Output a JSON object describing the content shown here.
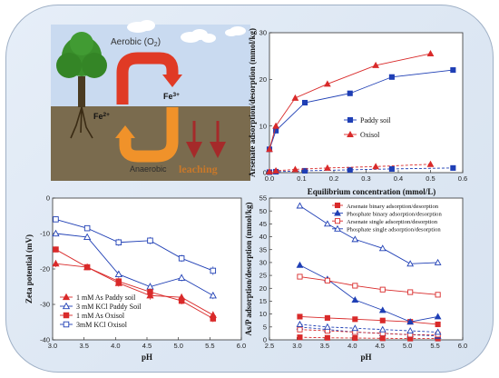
{
  "colors": {
    "red": "#d92a2a",
    "blue": "#1f3fb5",
    "frame": "#9fb0c6",
    "soil": "#7a6b4e",
    "sky": "#c9daf0",
    "tree_green": "#3a8f2c",
    "arrow_red": "#e03a25",
    "arrow_orange": "#f0922a",
    "down_arrow": "#a52a2a",
    "leaching": "#c8782a"
  },
  "illustration": {
    "aerobic": "Aerobic (O",
    "aerobic_sub": "2",
    "aerobic_end": ")",
    "fe3": "Fe",
    "fe3_sup": "3+",
    "fe2": "Fe",
    "fe2_sup": "2+",
    "anaerobic": "Anaerobic",
    "leaching": "leaching"
  },
  "chart_data": [
    {
      "id": "adsorption",
      "type": "line",
      "xlabel": "Equilibrium concentration (mmol/L)",
      "ylabel": "Arsenate adsorption/desorption (mmol/kg)",
      "xlim": [
        0.0,
        0.6
      ],
      "ylim": [
        0,
        30
      ],
      "xticks": [
        "0.0",
        "0.1",
        "0.2",
        "0.3",
        "0.4",
        "0.5",
        "0.6"
      ],
      "yticks": [
        "0",
        "10",
        "20",
        "30"
      ],
      "legend_position": "center-right",
      "series": [
        {
          "name": "Paddy soil",
          "style": "solid",
          "marker": "square-filled",
          "color": "blue",
          "x": [
            0.0,
            0.02,
            0.11,
            0.25,
            0.38,
            0.57
          ],
          "y": [
            5,
            9,
            15,
            17,
            20.5,
            22
          ]
        },
        {
          "name": "Oxisol",
          "style": "solid",
          "marker": "triangle-filled",
          "color": "red",
          "x": [
            0.0,
            0.02,
            0.08,
            0.18,
            0.33,
            0.5
          ],
          "y": [
            5,
            10,
            16,
            19,
            23,
            25.5
          ]
        },
        {
          "name": "",
          "style": "dashed",
          "marker": "square-filled",
          "color": "blue",
          "x": [
            0.0,
            0.02,
            0.11,
            0.25,
            0.38,
            0.57
          ],
          "y": [
            0.1,
            0.2,
            0.4,
            0.6,
            0.8,
            1.0
          ]
        },
        {
          "name": "",
          "style": "dashed",
          "marker": "triangle-filled",
          "color": "red",
          "x": [
            0.0,
            0.02,
            0.08,
            0.18,
            0.33,
            0.5
          ],
          "y": [
            0.2,
            0.4,
            0.7,
            1.0,
            1.3,
            1.8
          ]
        }
      ]
    },
    {
      "id": "zeta",
      "type": "line",
      "xlabel": "pH",
      "ylabel": "Zeta potential (mV)",
      "xlim": [
        3.0,
        6.0
      ],
      "ylim": [
        -40,
        0
      ],
      "xticks": [
        "3.0",
        "3.5",
        "4.0",
        "4.5",
        "5.0",
        "5.5",
        "6.0"
      ],
      "yticks": [
        "0",
        "-10",
        "-20",
        "-30",
        "-40"
      ],
      "legend_position": "bottom-left",
      "series": [
        {
          "name": "1 mM As Paddy soil",
          "marker": "triangle-filled",
          "color": "red",
          "x": [
            3.05,
            3.55,
            4.05,
            4.55,
            5.05,
            5.55
          ],
          "y": [
            -18.5,
            -19.5,
            -24,
            -27.5,
            -28,
            -33
          ],
          "err": [
            1,
            0.8,
            1,
            1.2,
            1,
            1
          ]
        },
        {
          "name": "3 mM KCl Paddy Soil",
          "marker": "triangle-open",
          "color": "blue",
          "x": [
            3.05,
            3.55,
            4.05,
            4.55,
            5.05,
            5.55
          ],
          "y": [
            -10,
            -11,
            -21.5,
            -25,
            -22.5,
            -27.5
          ],
          "err": [
            0.8,
            0.8,
            1,
            1,
            1,
            1
          ]
        },
        {
          "name": "1 mM As Oxisol",
          "marker": "square-filled",
          "color": "red",
          "x": [
            3.05,
            3.55,
            4.05,
            4.55,
            5.05,
            5.55
          ],
          "y": [
            -14.5,
            -19.5,
            -23.5,
            -26.5,
            -29,
            -34
          ],
          "err": [
            0.8,
            0.8,
            1,
            1,
            1,
            1
          ]
        },
        {
          "name": "3mM KCl Oxisol",
          "marker": "square-open",
          "color": "blue",
          "x": [
            3.05,
            3.55,
            4.05,
            4.55,
            5.05,
            5.55
          ],
          "y": [
            -6,
            -8.5,
            -12.5,
            -12,
            -17,
            -20.5
          ],
          "err": [
            0.8,
            0.8,
            1,
            1,
            1,
            1.2
          ]
        }
      ]
    },
    {
      "id": "asp",
      "type": "line",
      "xlabel": "pH",
      "ylabel": "As/P adsorption/desorption (mmol/kg)",
      "xlim": [
        2.5,
        6.0
      ],
      "ylim": [
        0,
        55
      ],
      "xticks": [
        "2.5",
        "3.0",
        "3.5",
        "4.0",
        "4.5",
        "5.0",
        "5.5",
        "6.0"
      ],
      "yticks": [
        "0",
        "5",
        "10",
        "15",
        "20",
        "25",
        "30",
        "35",
        "40",
        "45",
        "50",
        "55"
      ],
      "legend_position": "top-right",
      "series": [
        {
          "name": "Arsenate binary adsorption/desorption",
          "marker": "square-filled",
          "color": "red",
          "x": [
            3.05,
            3.55,
            4.05,
            4.55,
            5.05,
            5.55
          ],
          "y": [
            9,
            8.5,
            8,
            7.5,
            7,
            6
          ]
        },
        {
          "name": "Phosphate binary adsorption/desorption",
          "marker": "triangle-filled",
          "color": "blue",
          "x": [
            3.05,
            3.55,
            4.05,
            4.55,
            5.05,
            5.55
          ],
          "y": [
            29,
            23.5,
            15.5,
            11.5,
            7,
            9
          ]
        },
        {
          "name": "Arsenate single adsorption/desorption",
          "marker": "square-open",
          "color": "red",
          "x": [
            3.05,
            3.55,
            4.05,
            4.55,
            5.05,
            5.55
          ],
          "y": [
            24.5,
            23,
            21,
            19.5,
            18.5,
            17.5
          ]
        },
        {
          "name": "Phosphate single adsorption/desorption",
          "marker": "triangle-open",
          "color": "blue",
          "x": [
            3.05,
            3.55,
            4.05,
            4.55,
            5.05,
            5.55
          ],
          "y": [
            52,
            45,
            39,
            35.5,
            29.5,
            30
          ]
        },
        {
          "name": "",
          "marker": "square-filled",
          "color": "red",
          "style": "dashed",
          "x": [
            3.05,
            3.55,
            4.05,
            4.55,
            5.05,
            5.55
          ],
          "y": [
            1.0,
            0.8,
            0.7,
            0.6,
            0.5,
            0.5
          ]
        },
        {
          "name": "",
          "marker": "triangle-filled",
          "color": "blue",
          "style": "dashed",
          "x": [
            3.05,
            3.55,
            4.05,
            4.55,
            5.05,
            5.55
          ],
          "y": [
            5,
            4,
            3,
            2.5,
            2,
            1.5
          ]
        },
        {
          "name": "",
          "marker": "square-open",
          "color": "red",
          "style": "dashed",
          "x": [
            3.05,
            3.55,
            4.05,
            4.55,
            5.05,
            5.55
          ],
          "y": [
            4,
            3.5,
            3,
            2.5,
            2,
            2
          ]
        },
        {
          "name": "",
          "marker": "triangle-open",
          "color": "blue",
          "style": "dashed",
          "x": [
            3.05,
            3.55,
            4.05,
            4.55,
            5.05,
            5.55
          ],
          "y": [
            6,
            5,
            4.5,
            4,
            3.5,
            3
          ]
        }
      ]
    }
  ]
}
